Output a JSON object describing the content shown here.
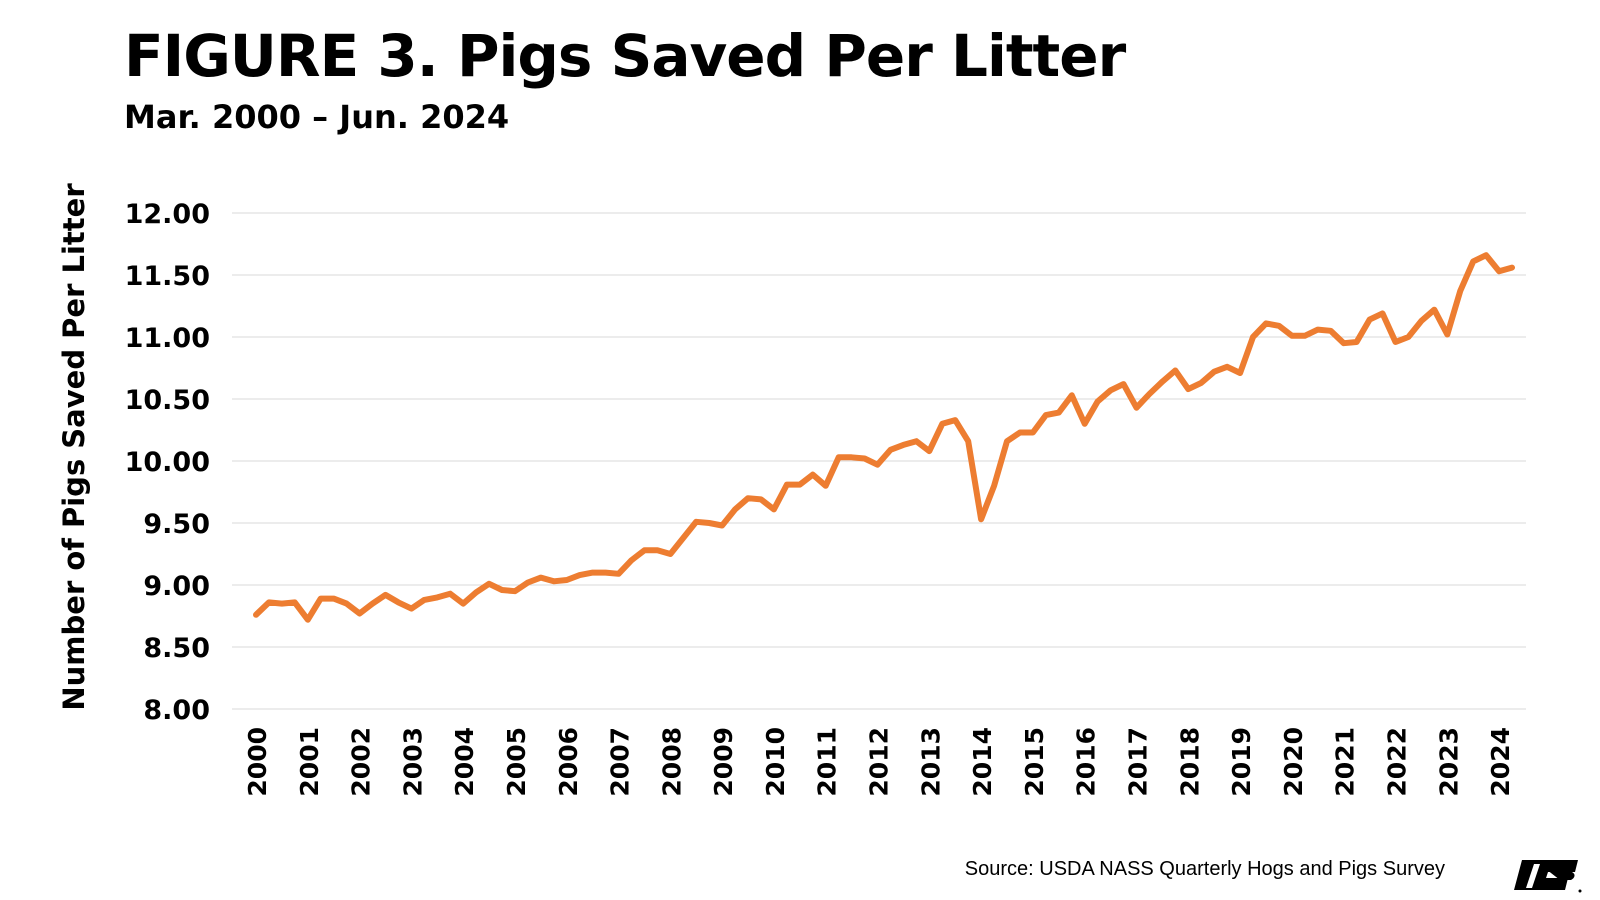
{
  "title": "FIGURE 3. Pigs Saved Per Litter",
  "subtitle": "Mar. 2000 – Jun. 2024",
  "source": "Source: USDA NASS Quarterly Hogs and Pigs Survey",
  "colors": {
    "line": "#ED7D31",
    "grid": "#D9D9D9",
    "text": "#000000"
  },
  "logo_icon": "fb-logo-icon",
  "chart_data": {
    "type": "line",
    "ylabel": "Number of Pigs Saved Per Litter",
    "ylim": [
      8.0,
      12.0
    ],
    "yticks": [
      "8.00",
      "8.50",
      "9.00",
      "9.50",
      "10.00",
      "10.50",
      "11.00",
      "11.50",
      "12.00"
    ],
    "xlabels": [
      "2000",
      "2001",
      "2002",
      "2003",
      "2004",
      "2005",
      "2006",
      "2007",
      "2008",
      "2009",
      "2010",
      "2011",
      "2012",
      "2013",
      "2014",
      "2015",
      "2016",
      "2017",
      "2018",
      "2019",
      "2020",
      "2021",
      "2022",
      "2023",
      "2024"
    ],
    "grid": true,
    "series": [
      {
        "x": [
          "2000-03",
          "2000-06",
          "2000-09",
          "2000-12",
          "2001-03",
          "2001-06",
          "2001-09",
          "2001-12",
          "2002-03",
          "2002-06",
          "2002-09",
          "2002-12",
          "2003-03",
          "2003-06",
          "2003-09",
          "2003-12",
          "2004-03",
          "2004-06",
          "2004-09",
          "2004-12",
          "2005-03",
          "2005-06",
          "2005-09",
          "2005-12",
          "2006-03",
          "2006-06",
          "2006-09",
          "2006-12",
          "2007-03",
          "2007-06",
          "2007-09",
          "2007-12",
          "2008-03",
          "2008-06",
          "2008-09",
          "2008-12",
          "2009-03",
          "2009-06",
          "2009-09",
          "2009-12",
          "2010-03",
          "2010-06",
          "2010-09",
          "2010-12",
          "2011-03",
          "2011-06",
          "2011-09",
          "2011-12",
          "2012-03",
          "2012-06",
          "2012-09",
          "2012-12",
          "2013-03",
          "2013-06",
          "2013-09",
          "2013-12",
          "2014-03",
          "2014-06",
          "2014-09",
          "2014-12",
          "2015-03",
          "2015-06",
          "2015-09",
          "2015-12",
          "2016-03",
          "2016-06",
          "2016-09",
          "2016-12",
          "2017-03",
          "2017-06",
          "2017-09",
          "2017-12",
          "2018-03",
          "2018-06",
          "2018-09",
          "2018-12",
          "2019-03",
          "2019-06",
          "2019-09",
          "2019-12",
          "2020-03",
          "2020-06",
          "2020-09",
          "2020-12",
          "2021-03",
          "2021-06",
          "2021-09",
          "2021-12",
          "2022-03",
          "2022-06",
          "2022-09",
          "2022-12",
          "2023-03",
          "2023-06",
          "2023-09",
          "2023-12",
          "2024-03",
          "2024-06"
        ],
        "values": [
          8.76,
          8.86,
          8.85,
          8.86,
          8.72,
          8.89,
          8.89,
          8.85,
          8.77,
          8.85,
          8.92,
          8.86,
          8.81,
          8.88,
          8.9,
          8.93,
          8.85,
          8.94,
          9.01,
          8.96,
          8.95,
          9.02,
          9.06,
          9.03,
          9.04,
          9.08,
          9.1,
          9.1,
          9.09,
          9.2,
          9.28,
          9.28,
          9.25,
          9.38,
          9.51,
          9.5,
          9.48,
          9.61,
          9.7,
          9.69,
          9.61,
          9.81,
          9.81,
          9.89,
          9.8,
          10.03,
          10.03,
          10.02,
          9.97,
          10.09,
          10.13,
          10.16,
          10.08,
          10.3,
          10.33,
          10.16,
          9.53,
          9.8,
          10.16,
          10.23,
          10.23,
          10.37,
          10.39,
          10.53,
          10.3,
          10.48,
          10.57,
          10.62,
          10.43,
          10.54,
          10.64,
          10.73,
          10.58,
          10.63,
          10.72,
          10.76,
          10.71,
          11.0,
          11.11,
          11.09,
          11.01,
          11.01,
          11.06,
          11.05,
          10.95,
          10.96,
          11.14,
          11.19,
          10.96,
          11.0,
          11.13,
          11.22,
          11.02,
          11.37,
          11.61,
          11.66,
          11.53,
          11.56
        ]
      }
    ]
  }
}
